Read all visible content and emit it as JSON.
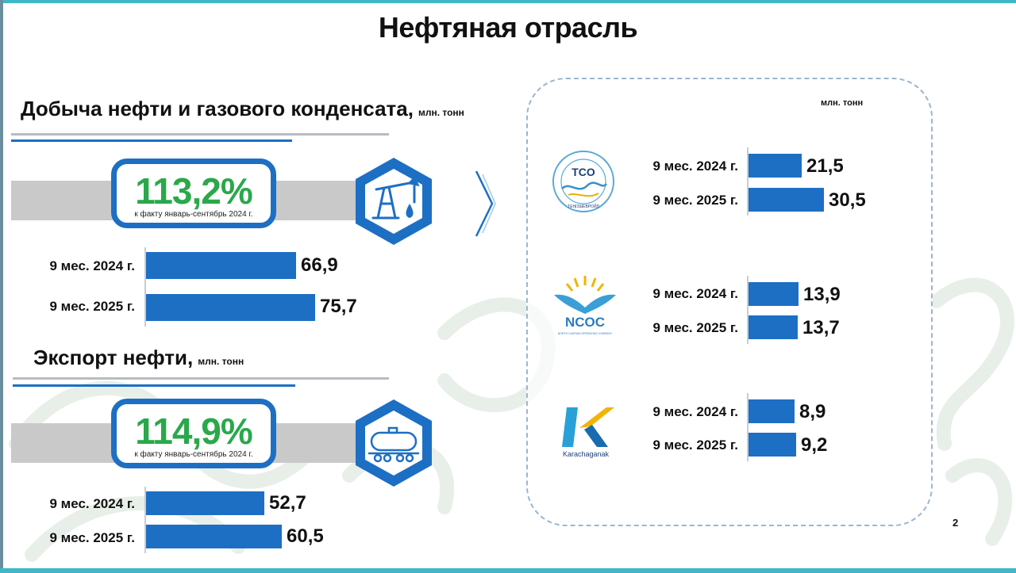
{
  "title": "Нефтяная отрасль",
  "left": {
    "production": {
      "heading": "Добыча нефти и газового конденсата,",
      "unit": "млн. тонн",
      "percent": "113,2%",
      "percent_note": "к факту январь-сентябрь 2024 г.",
      "icon": "oil-pump-icon"
    },
    "export": {
      "heading": "Экспорт нефти,",
      "unit": "млн. тонн",
      "percent": "114,9%",
      "percent_note": "к факту январь-сентябрь 2024 г.",
      "icon": "oil-tank-wagon-icon"
    }
  },
  "right": {
    "unit": "млн. тонн",
    "companies": [
      {
        "logo": "tco-tengizchevroil-logo",
        "logo_text": "TCO",
        "logo_caption": "ТЕҢІЗШЕВРОЙЛ"
      },
      {
        "logo": "ncoc-logo",
        "logo_text": "NCOC",
        "logo_caption": "NORTH CASPIAN OPERATING COMPANY"
      },
      {
        "logo": "karachaganak-logo",
        "logo_text": "K",
        "logo_caption": "Karachaganak"
      }
    ]
  },
  "page_number": "2",
  "colors": {
    "bar": "#1d6fc4",
    "percent": "#2aa84a",
    "frame": "#1d6fc4",
    "band": "#c9c9c9"
  },
  "chart_data": [
    {
      "type": "bar",
      "title": "Добыча нефти и газового конденсата",
      "unit": "млн. тонн",
      "categories": [
        "9 мес. 2024 г.",
        "9 мес. 2025 г."
      ],
      "values": [
        66.9,
        75.7
      ],
      "labels": [
        "66,9",
        "75,7"
      ]
    },
    {
      "type": "bar",
      "title": "Экспорт нефти",
      "unit": "млн. тонн",
      "categories": [
        "9 мес. 2024 г.",
        "9 мес. 2025 г."
      ],
      "values": [
        52.7,
        60.5
      ],
      "labels": [
        "52,7",
        "60,5"
      ]
    },
    {
      "type": "bar",
      "series_owner": "TCO",
      "unit": "млн. тонн",
      "categories": [
        "9 мес. 2024 г.",
        "9 мес. 2025 г."
      ],
      "values": [
        21.5,
        30.5
      ],
      "labels": [
        "21,5",
        "30,5"
      ]
    },
    {
      "type": "bar",
      "series_owner": "NCOC",
      "unit": "млн. тонн",
      "categories": [
        "9 мес. 2024 г.",
        "9 мес. 2025 г."
      ],
      "values": [
        13.9,
        13.7
      ],
      "labels": [
        "13,9",
        "13,7"
      ]
    },
    {
      "type": "bar",
      "series_owner": "Karachaganak",
      "unit": "млн. тонн",
      "categories": [
        "9 мес. 2024 г.",
        "9 мес. 2025 г."
      ],
      "values": [
        8.9,
        9.2
      ],
      "labels": [
        "8,9",
        "9,2"
      ]
    }
  ]
}
